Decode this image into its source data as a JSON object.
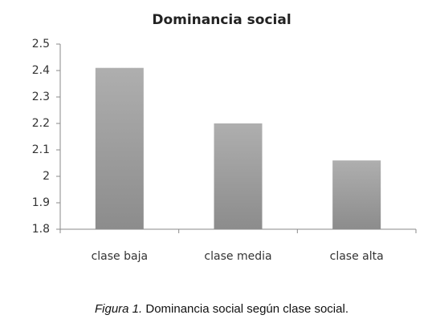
{
  "chart_data": {
    "type": "bar",
    "title": "Dominancia social",
    "categories": [
      "clase baja",
      "clase media",
      "clase alta"
    ],
    "values": [
      2.41,
      2.2,
      2.06
    ],
    "color": "#8c8c8c",
    "ylim": [
      1.8,
      2.5
    ],
    "yticks": [
      1.8,
      1.9,
      2,
      2.1,
      2.2,
      2.3,
      2.4,
      2.5
    ],
    "grid": false
  },
  "caption": {
    "label": "Figura 1.",
    "text": "Dominancia social según clase social."
  }
}
